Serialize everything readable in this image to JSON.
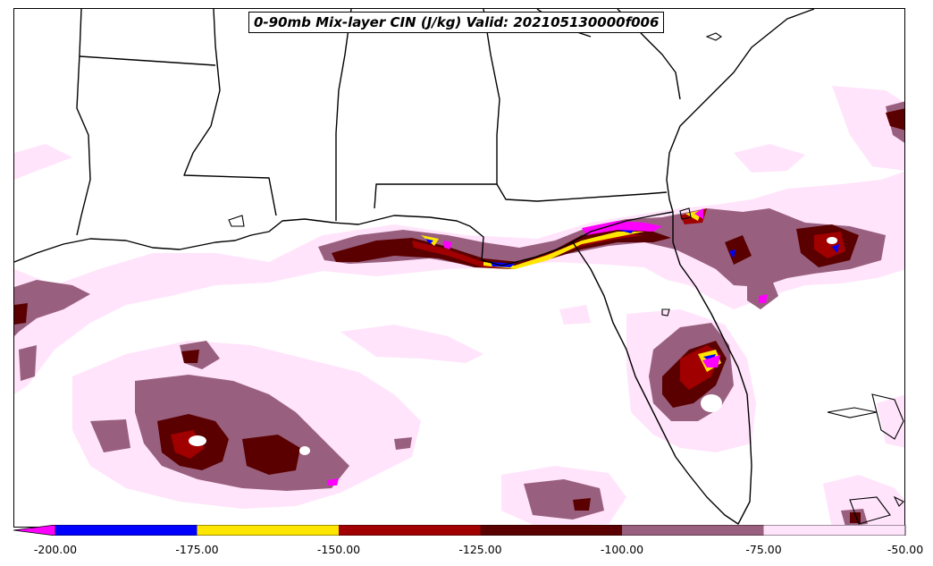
{
  "title": "0-90mb Mix-layer CIN (J/kg) Valid: 202105130000f006",
  "colorbar": {
    "ticks": [
      "-200.00",
      "-175.00",
      "-150.00",
      "-125.00",
      "-100.00",
      "-75.00",
      "-50.00"
    ],
    "values": [
      -200,
      -175,
      -150,
      -125,
      -100,
      -75,
      -50
    ],
    "underflow_color": "#ff00ff",
    "bins": [
      {
        "from": -200,
        "to": -175,
        "color": "#0000ff"
      },
      {
        "from": -175,
        "to": -150,
        "color": "#ffe600"
      },
      {
        "from": -150,
        "to": -125,
        "color": "#a00000"
      },
      {
        "from": -125,
        "to": -100,
        "color": "#5a0000"
      },
      {
        "from": -100,
        "to": -75,
        "color": "#98607e"
      },
      {
        "from": -75,
        "to": -50,
        "color": "#ffe4fb"
      }
    ]
  }
}
